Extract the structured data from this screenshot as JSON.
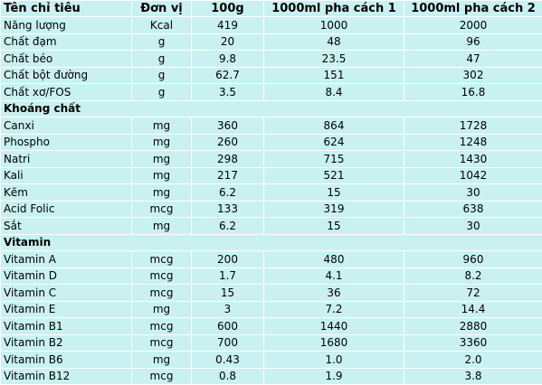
{
  "table": {
    "header": [
      "Tên chỉ tiêu",
      "Đơn vị",
      "100g",
      "1000ml pha cách 1",
      "1000ml pha cách 2"
    ],
    "sections": [
      {
        "rows": [
          [
            "Năng lượng",
            "Kcal",
            "419",
            "1000",
            "2000"
          ],
          [
            "Chất đạm",
            "g",
            "20",
            "48",
            "96"
          ],
          [
            "Chất béo",
            "g",
            "9.8",
            "23.5",
            "47"
          ],
          [
            "Chất bột đường",
            "g",
            "62.7",
            "151",
            "302"
          ],
          [
            "Chất xơ/FOS",
            "g",
            "3.5",
            "8.4",
            "16.8"
          ]
        ]
      },
      {
        "title": "Khoáng chất",
        "rows": [
          [
            "Canxi",
            "mg",
            "360",
            "864",
            "1728"
          ],
          [
            "Phospho",
            "mg",
            "260",
            "624",
            "1248"
          ],
          [
            "Natri",
            "mg",
            "298",
            "715",
            "1430"
          ],
          [
            "Kali",
            "mg",
            "217",
            "521",
            "1042"
          ],
          [
            "Kẽm",
            "mg",
            "6.2",
            "15",
            "30"
          ],
          [
            "Acid Folic",
            "mcg",
            "133",
            "319",
            "638"
          ],
          [
            "Sắt",
            "mg",
            "6.2",
            "15",
            "30"
          ]
        ]
      },
      {
        "title": "Vitamin",
        "rows": [
          [
            "Vitamin A",
            "mcg",
            "200",
            "480",
            "960"
          ],
          [
            "Vitamin D",
            "mcg",
            "1.7",
            "4.1",
            "8.2"
          ],
          [
            "Vitamin C",
            "mcg",
            "15",
            "36",
            "72"
          ],
          [
            "Vitamin E",
            "mg",
            "3",
            "7.2",
            "14.4"
          ],
          [
            "Vitamin B1",
            "mcg",
            "600",
            "1440",
            "2880"
          ],
          [
            "Vitamin B2",
            "mcg",
            "700",
            "1680",
            "3360"
          ],
          [
            "Vitamin B6",
            "mg",
            "0.43",
            "1.0",
            "2.0"
          ],
          [
            "Vitamin B12",
            "mcg",
            "0.8",
            "1.9",
            "3.8"
          ]
        ]
      }
    ]
  }
}
